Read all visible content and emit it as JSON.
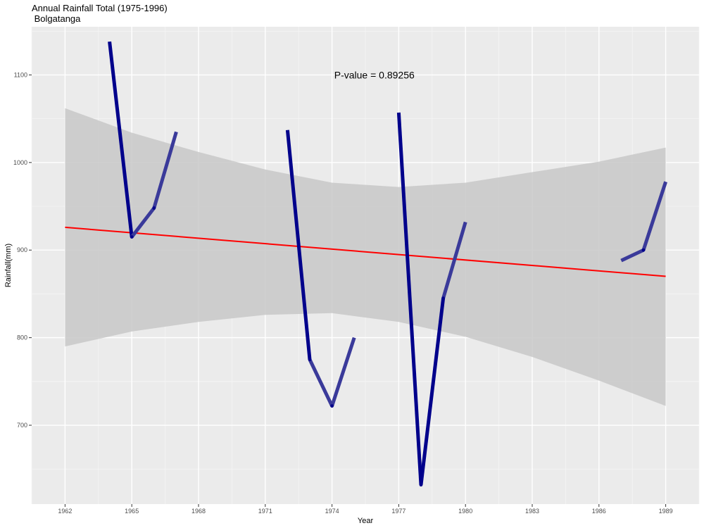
{
  "chart_data": {
    "type": "line",
    "title": "Annual Rainfall Total (1975-1996)",
    "subtitle": " Bolgatanga",
    "xlabel": "Year",
    "ylabel": "Rainfall(mm)",
    "xlim": [
      1960.5,
      1990.5
    ],
    "ylim": [
      610,
      1155
    ],
    "xticks": [
      1962,
      1965,
      1968,
      1971,
      1974,
      1977,
      1980,
      1983,
      1986,
      1989
    ],
    "yticks": [
      700,
      800,
      900,
      1000,
      1100
    ],
    "grid": true,
    "annotation": "P-value = 0.89256",
    "colors": {
      "panel": "#ebebeb",
      "grid_major": "#ffffff",
      "series_light": "#3a3a9a",
      "series_dark": "#00008b",
      "trend": "#ff0000",
      "band": "#c8c8c8"
    },
    "series": [
      {
        "segments": [
          [
            [
              1964,
              1138
            ],
            [
              1965,
              915
            ],
            [
              1966,
              948
            ],
            [
              1967,
              1035
            ]
          ],
          [
            [
              1972,
              1037
            ],
            [
              1973,
              775
            ],
            [
              1974,
              722
            ],
            [
              1975,
              800
            ]
          ],
          [
            [
              1977,
              1057
            ],
            [
              1978,
              632
            ],
            [
              1979,
              845
            ],
            [
              1980,
              932
            ]
          ],
          [
            [
              1987,
              888
            ],
            [
              1988,
              900
            ],
            [
              1989,
              978
            ]
          ]
        ]
      }
    ],
    "trend": {
      "x": [
        1962,
        1989
      ],
      "y": [
        926,
        870
      ]
    },
    "confidence_band": {
      "x": [
        1962,
        1965,
        1968,
        1971,
        1974,
        1977,
        1980,
        1983,
        1986,
        1989
      ],
      "upper": [
        1062,
        1034,
        1012,
        992,
        977,
        972,
        977,
        989,
        1001,
        1017
      ],
      "lower": [
        790,
        807,
        818,
        826,
        828,
        818,
        801,
        778,
        751,
        722
      ]
    }
  }
}
